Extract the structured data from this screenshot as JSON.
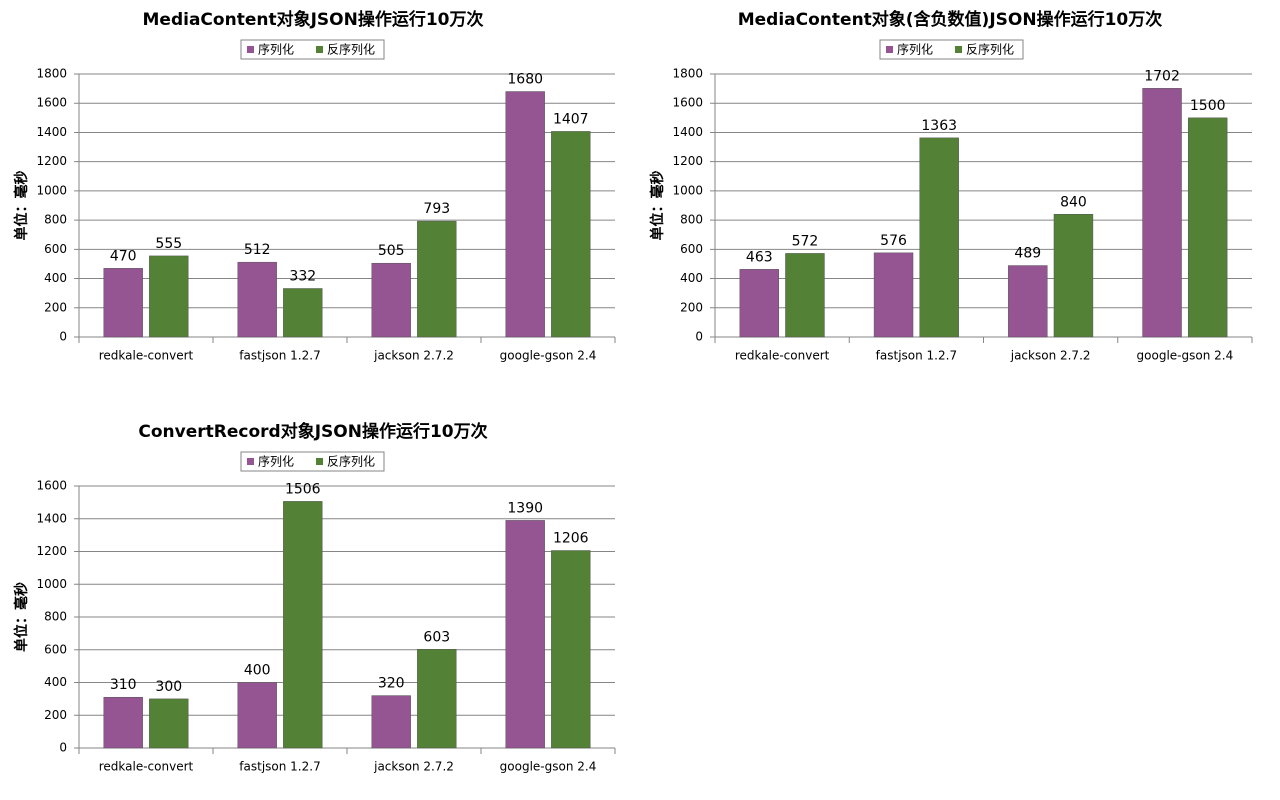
{
  "chart_data": [
    {
      "type": "bar",
      "title": "MediaContent对象JSON操作运行10万次",
      "y_label": "单位：毫秒",
      "categories": [
        "redkale-convert",
        "fastjson 1.2.7",
        "jackson 2.7.2",
        "google-gson 2.4"
      ],
      "series": [
        {
          "name": "序列化",
          "color": "#955593",
          "values": [
            470,
            512,
            505,
            1680
          ]
        },
        {
          "name": "反序列化",
          "color": "#538135",
          "values": [
            555,
            332,
            793,
            1407
          ]
        }
      ],
      "ylim": [
        0,
        1800
      ],
      "yticks": [
        0,
        200,
        400,
        600,
        800,
        1000,
        1200,
        1400,
        1600,
        1800
      ],
      "grid": true,
      "legend": "top"
    },
    {
      "type": "bar",
      "title": "MediaContent对象(含负数值)JSON操作运行10万次",
      "y_label": "单位：毫秒",
      "categories": [
        "redkale-convert",
        "fastjson 1.2.7",
        "jackson 2.7.2",
        "google-gson 2.4"
      ],
      "series": [
        {
          "name": "序列化",
          "color": "#955593",
          "values": [
            463,
            576,
            489,
            1702
          ]
        },
        {
          "name": "反序列化",
          "color": "#538135",
          "values": [
            572,
            1363,
            840,
            1500
          ]
        }
      ],
      "ylim": [
        0,
        1800
      ],
      "yticks": [
        0,
        200,
        400,
        600,
        800,
        1000,
        1200,
        1400,
        1600,
        1800
      ],
      "grid": true,
      "legend": "top"
    },
    {
      "type": "bar",
      "title": "ConvertRecord对象JSON操作运行10万次",
      "y_label": "单位：毫秒",
      "categories": [
        "redkale-convert",
        "fastjson 1.2.7",
        "jackson 2.7.2",
        "google-gson 2.4"
      ],
      "series": [
        {
          "name": "序列化",
          "color": "#955593",
          "values": [
            310,
            400,
            320,
            1390
          ]
        },
        {
          "name": "反序列化",
          "color": "#538135",
          "values": [
            300,
            1506,
            603,
            1206
          ]
        }
      ],
      "ylim": [
        0,
        1600
      ],
      "yticks": [
        0,
        200,
        400,
        600,
        800,
        1000,
        1200,
        1400,
        1600
      ],
      "grid": true,
      "legend": "top"
    }
  ]
}
